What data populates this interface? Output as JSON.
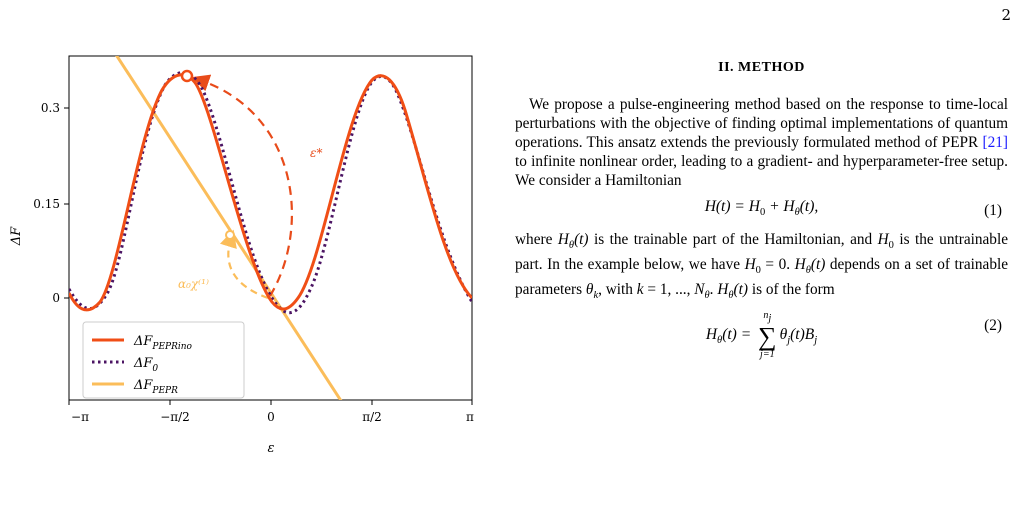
{
  "page": {
    "number": "2"
  },
  "figure": {
    "ylabel": "ΔF",
    "xlabel": "ε",
    "yticks": [
      "0",
      "0.15",
      "0.3"
    ],
    "xticks": [
      "−π",
      "−π/2",
      "0",
      "π/2",
      "π"
    ],
    "annotation_epsilon_star": "ε*",
    "annotation_alpha": "α₀χ⁽¹⁾",
    "legend": [
      {
        "main": "ΔF",
        "sub": "PEPRino",
        "color": "#f04e16",
        "style": "solid"
      },
      {
        "main": "ΔF",
        "sub": "0",
        "color": "#4b1463",
        "style": "dotted"
      },
      {
        "main": "ΔF",
        "sub": "PEPR",
        "color": "#fbbd5a",
        "style": "solid"
      }
    ],
    "colors": {
      "peprino": "#f04e16",
      "f0": "#4b1463",
      "pepr": "#fbbd5a",
      "dashed_red": "#e84b1a",
      "dashed_yellow": "#fbbd5a"
    }
  },
  "chart_data": {
    "type": "line",
    "xlabel": "ε",
    "ylabel": "ΔF",
    "xlim": [
      -3.14159,
      3.14159
    ],
    "ylim": [
      -0.25,
      0.37
    ],
    "series": [
      {
        "name": "ΔF_PEPRino",
        "x": [
          -3.14,
          -2.8,
          -2.4,
          -2.0,
          -1.6,
          -1.2,
          -0.8,
          -0.4,
          0.0,
          0.2,
          0.6,
          1.0,
          1.4,
          1.8,
          2.2,
          2.6,
          3.0,
          3.14
        ],
        "y": [
          0.0,
          -0.01,
          0.05,
          0.2,
          0.33,
          0.35,
          0.25,
          0.1,
          0.01,
          -0.01,
          0.03,
          0.16,
          0.3,
          0.35,
          0.28,
          0.12,
          0.01,
          0.0
        ]
      },
      {
        "name": "ΔF_0",
        "x": [
          -3.14,
          -2.8,
          -2.4,
          -2.0,
          -1.6,
          -1.2,
          -0.8,
          -0.4,
          0.0,
          0.2,
          0.6,
          1.0,
          1.4,
          1.8,
          2.2,
          2.6,
          3.0,
          3.14
        ],
        "y": [
          0.01,
          -0.01,
          0.04,
          0.19,
          0.33,
          0.35,
          0.24,
          0.09,
          0.01,
          -0.01,
          0.02,
          0.14,
          0.29,
          0.35,
          0.3,
          0.14,
          0.03,
          0.0
        ]
      },
      {
        "name": "ΔF_PEPR",
        "x": [
          -3.14,
          1.3
        ],
        "y": [
          0.6,
          -0.25
        ]
      }
    ]
  },
  "text": {
    "heading": "II.   METHOD",
    "p1": "We propose a pulse-engineering method based on the response to time-local perturbations with the objective of finding optimal implementations of quantum operations. This ansatz extends the previously formulated method of PEPR ",
    "p1_cite": "[21]",
    "p1_rest": " to infinite nonlinear order, leading to a gradient- and hyperparameter-free setup. We consider a Hamiltonian",
    "eq1_left": "H(t) = H",
    "eq1_sub0": "0",
    "eq1_mid": " + H",
    "eq1_subtheta": "θ",
    "eq1_right": "(t),",
    "eq1_num": "(1)",
    "p2_a": "where ",
    "p2_b": " is the trainable part of the Hamiltonian, and ",
    "p2_c": " is the untrainable part. In the example below, we have ",
    "p2_d": " = 0.  ",
    "p2_e": " depends on a set of trainable parameters ",
    "p2_f": ", with ",
    "p2_g": " = 1, ..., ",
    "p2_h": ".  ",
    "p2_i": " is of the form",
    "eq2_lhs": "H",
    "eq2_lhs_sub": "θ",
    "eq2_lhs_rest": "(t) = ",
    "eq2_upper": "n",
    "eq2_upper_sub": "j",
    "eq2_lower": "j=1",
    "eq2_body": "θ",
    "eq2_body_sub": "j",
    "eq2_body_rest": "(t)B",
    "eq2_body_sub2": "j",
    "eq2_num": "(2)"
  }
}
